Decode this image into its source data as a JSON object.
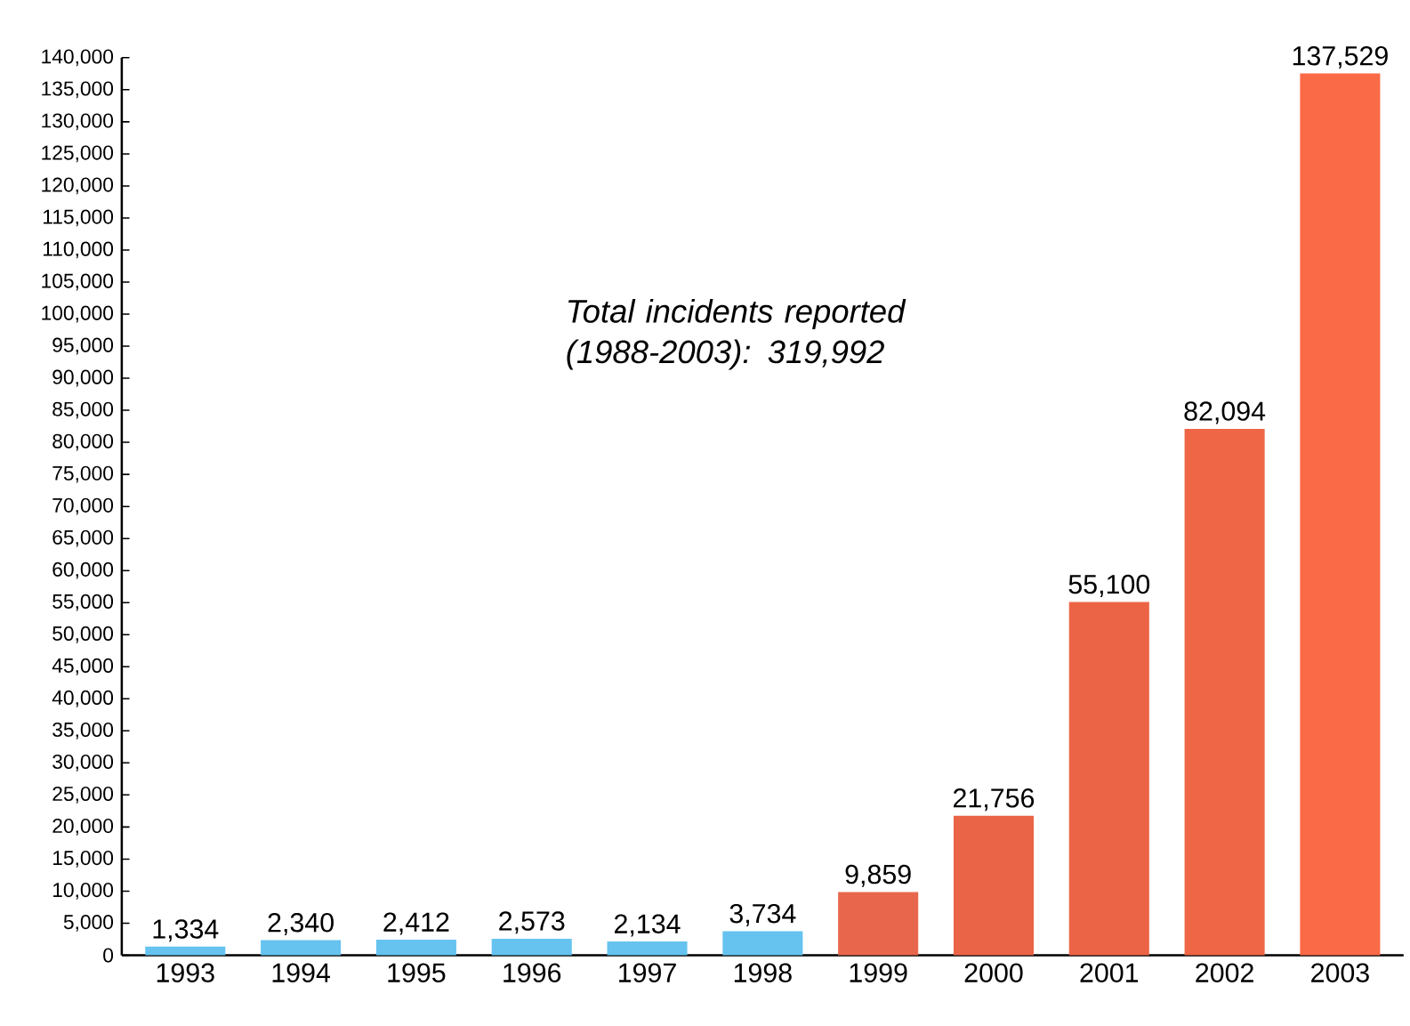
{
  "chart_data": {
    "type": "bar",
    "categories": [
      "1993",
      "1994",
      "1995",
      "1996",
      "1997",
      "1998",
      "1999",
      "2000",
      "2001",
      "2002",
      "2003"
    ],
    "values": [
      1334,
      2340,
      2412,
      2573,
      2134,
      3734,
      9859,
      21756,
      55100,
      82094,
      137529
    ],
    "value_labels": [
      "1,334",
      "2,340",
      "2,412",
      "2,573",
      "2,134",
      "3,734",
      "9,859",
      "21,756",
      "55,100",
      "82,094",
      "137,529"
    ],
    "colors": [
      "#66c3ef",
      "#66c3ef",
      "#66c3ef",
      "#66c3ef",
      "#66c3ef",
      "#66c3ef",
      "#e8674c",
      "#ea6448",
      "#ec6446",
      "#ee6645",
      "#fb6a46"
    ],
    "ylim": [
      0,
      140000
    ],
    "yticks": [
      {
        "value": 0,
        "label": "0"
      },
      {
        "value": 5000,
        "label": "5,000"
      },
      {
        "value": 10000,
        "label": "10,000"
      },
      {
        "value": 15000,
        "label": "15,000"
      },
      {
        "value": 20000,
        "label": "20,000"
      },
      {
        "value": 25000,
        "label": "25,000"
      },
      {
        "value": 30000,
        "label": "30,000"
      },
      {
        "value": 35000,
        "label": "35,000"
      },
      {
        "value": 40000,
        "label": "40,000"
      },
      {
        "value": 45000,
        "label": "45,000"
      },
      {
        "value": 50000,
        "label": "50,000"
      },
      {
        "value": 55000,
        "label": "55,000"
      },
      {
        "value": 60000,
        "label": "60,000"
      },
      {
        "value": 65000,
        "label": "65,000"
      },
      {
        "value": 70000,
        "label": "70,000"
      },
      {
        "value": 75000,
        "label": "75,000"
      },
      {
        "value": 80000,
        "label": "80,000"
      },
      {
        "value": 85000,
        "label": "85,000"
      },
      {
        "value": 90000,
        "label": "90,000"
      },
      {
        "value": 95000,
        "label": "95,000"
      },
      {
        "value": 100000,
        "label": "100,000"
      },
      {
        "value": 105000,
        "label": "105,000"
      },
      {
        "value": 110000,
        "label": "110,000"
      },
      {
        "value": 115000,
        "label": "115,000"
      },
      {
        "value": 120000,
        "label": "120,000"
      },
      {
        "value": 125000,
        "label": "125,000"
      },
      {
        "value": 130000,
        "label": "130,000"
      },
      {
        "value": 135000,
        "label": "135,000"
      },
      {
        "value": 140000,
        "label": "140,000"
      }
    ],
    "grid": false,
    "annotations": [
      "Total incidents reported (1988-2003): 319,992"
    ]
  }
}
